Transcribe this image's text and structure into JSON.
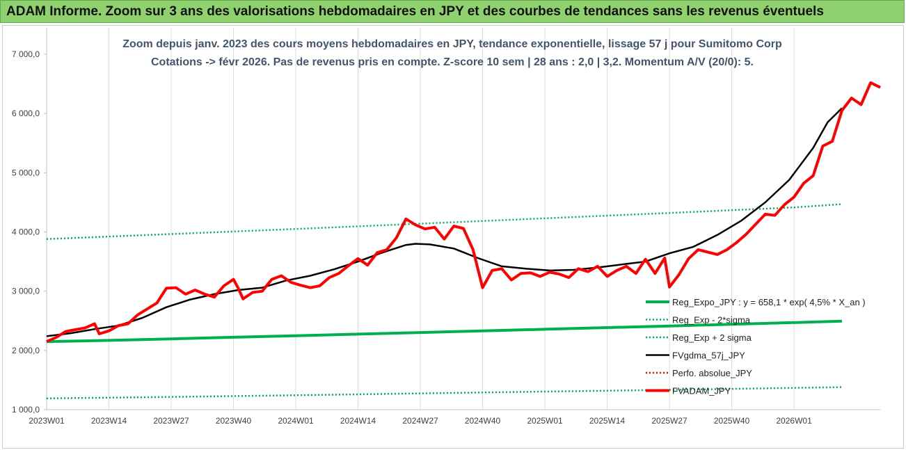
{
  "header": {
    "title": "ADAM Informe. Zoom sur 3 ans des valorisations hebdomadaires en JPY et des courbes de tendances sans les revenus éventuels"
  },
  "chart_data": {
    "type": "line",
    "title_lines": [
      "Zoom depuis janv. 2023 des cours moyens hebdomadaires en JPY, tendance exponentielle, lissage 57 j pour Sumitomo Corp",
      "Cotations -> févr 2026.  Pas de revenus pris en compte. Z-score 10 sem | 28 ans : 2,0 | 3,2. Momentum A/V (20/0): 5."
    ],
    "xlabel": "",
    "ylabel": "",
    "ylim": [
      1000,
      7000
    ],
    "yticks": [
      "1 000,0",
      "2 000,0",
      "3 000,0",
      "4 000,0",
      "5 000,0",
      "6 000,0",
      "7 000,0"
    ],
    "xticks": [
      "2023W01",
      "2023W14",
      "2023W27",
      "2023W40",
      "2024W01",
      "2024W14",
      "2024W27",
      "2024W40",
      "2025W01",
      "2025W14",
      "2025W27",
      "2025W40",
      "2026W01"
    ],
    "grid": "vertical",
    "legend_position": "bottom-right",
    "x_range_weeks": [
      0,
      166
    ],
    "series": [
      {
        "name": "Reg_Expo_JPY : y = 658,1 * exp( 4,5% *  X_an )",
        "color": "#00b050",
        "style": "thick",
        "points": [
          [
            0,
            2150
          ],
          [
            13,
            2170
          ],
          [
            26,
            2195
          ],
          [
            39,
            2222
          ],
          [
            52,
            2248
          ],
          [
            65,
            2275
          ],
          [
            78,
            2302
          ],
          [
            91,
            2330
          ],
          [
            104,
            2357
          ],
          [
            117,
            2385
          ],
          [
            130,
            2413
          ],
          [
            143,
            2442
          ],
          [
            156,
            2470
          ],
          [
            166,
            2493
          ]
        ]
      },
      {
        "name": "Reg_Exp - 2*sigma",
        "color": "#00b050",
        "style": "dotted",
        "points": [
          [
            0,
            1190
          ],
          [
            26,
            1215
          ],
          [
            52,
            1243
          ],
          [
            78,
            1275
          ],
          [
            104,
            1305
          ],
          [
            130,
            1335
          ],
          [
            156,
            1368
          ],
          [
            166,
            1380
          ]
        ]
      },
      {
        "name": "Reg_Exp + 2 sigma",
        "color": "#00b050",
        "style": "dotted",
        "points": [
          [
            0,
            3880
          ],
          [
            26,
            3965
          ],
          [
            52,
            4050
          ],
          [
            78,
            4140
          ],
          [
            104,
            4230
          ],
          [
            130,
            4320
          ],
          [
            156,
            4415
          ],
          [
            166,
            4470
          ]
        ]
      },
      {
        "name": "FVgdma_57j_JPY",
        "color": "#000000",
        "style": "solid",
        "points": [
          [
            0,
            2240
          ],
          [
            5,
            2290
          ],
          [
            10,
            2360
          ],
          [
            15,
            2420
          ],
          [
            20,
            2550
          ],
          [
            25,
            2730
          ],
          [
            30,
            2860
          ],
          [
            35,
            2950
          ],
          [
            40,
            3020
          ],
          [
            45,
            3060
          ],
          [
            50,
            3180
          ],
          [
            55,
            3260
          ],
          [
            60,
            3370
          ],
          [
            65,
            3500
          ],
          [
            70,
            3650
          ],
          [
            75,
            3780
          ],
          [
            77,
            3800
          ],
          [
            80,
            3790
          ],
          [
            85,
            3720
          ],
          [
            90,
            3560
          ],
          [
            95,
            3420
          ],
          [
            100,
            3380
          ],
          [
            105,
            3350
          ],
          [
            110,
            3360
          ],
          [
            115,
            3400
          ],
          [
            120,
            3450
          ],
          [
            125,
            3500
          ],
          [
            130,
            3640
          ],
          [
            135,
            3750
          ],
          [
            140,
            3950
          ],
          [
            145,
            4190
          ],
          [
            150,
            4500
          ],
          [
            155,
            4880
          ],
          [
            160,
            5420
          ],
          [
            163,
            5850
          ],
          [
            166,
            6090
          ]
        ]
      },
      {
        "name": "Perfo. absolue_JPY",
        "color": "#ff0000",
        "style": "dotted",
        "points": []
      },
      {
        "name": "FVADAM_JPY",
        "color": "#ff0000",
        "style": "thick",
        "points": [
          [
            0,
            2150
          ],
          [
            2,
            2220
          ],
          [
            4,
            2320
          ],
          [
            6,
            2350
          ],
          [
            8,
            2380
          ],
          [
            10,
            2450
          ],
          [
            11,
            2280
          ],
          [
            13,
            2330
          ],
          [
            15,
            2420
          ],
          [
            17,
            2450
          ],
          [
            19,
            2600
          ],
          [
            21,
            2700
          ],
          [
            23,
            2800
          ],
          [
            25,
            3050
          ],
          [
            27,
            3060
          ],
          [
            29,
            2950
          ],
          [
            31,
            3020
          ],
          [
            33,
            2950
          ],
          [
            35,
            2900
          ],
          [
            37,
            3090
          ],
          [
            39,
            3200
          ],
          [
            40,
            3050
          ],
          [
            41,
            2870
          ],
          [
            43,
            2980
          ],
          [
            45,
            3000
          ],
          [
            47,
            3200
          ],
          [
            49,
            3260
          ],
          [
            51,
            3150
          ],
          [
            53,
            3100
          ],
          [
            55,
            3060
          ],
          [
            57,
            3090
          ],
          [
            59,
            3230
          ],
          [
            61,
            3300
          ],
          [
            63,
            3430
          ],
          [
            65,
            3550
          ],
          [
            67,
            3440
          ],
          [
            69,
            3650
          ],
          [
            71,
            3700
          ],
          [
            73,
            3900
          ],
          [
            75,
            4220
          ],
          [
            77,
            4120
          ],
          [
            79,
            4050
          ],
          [
            81,
            4080
          ],
          [
            83,
            3880
          ],
          [
            85,
            4100
          ],
          [
            87,
            4060
          ],
          [
            89,
            3700
          ],
          [
            91,
            3060
          ],
          [
            93,
            3350
          ],
          [
            95,
            3380
          ],
          [
            97,
            3190
          ],
          [
            99,
            3300
          ],
          [
            101,
            3310
          ],
          [
            103,
            3250
          ],
          [
            105,
            3320
          ],
          [
            107,
            3290
          ],
          [
            109,
            3230
          ],
          [
            111,
            3380
          ],
          [
            113,
            3330
          ],
          [
            115,
            3420
          ],
          [
            117,
            3250
          ],
          [
            119,
            3350
          ],
          [
            121,
            3420
          ],
          [
            123,
            3300
          ],
          [
            125,
            3540
          ],
          [
            127,
            3300
          ],
          [
            129,
            3560
          ],
          [
            130,
            3070
          ],
          [
            132,
            3280
          ],
          [
            134,
            3550
          ],
          [
            136,
            3700
          ],
          [
            138,
            3660
          ],
          [
            140,
            3620
          ],
          [
            142,
            3700
          ],
          [
            144,
            3820
          ],
          [
            146,
            3960
          ],
          [
            148,
            4130
          ],
          [
            150,
            4300
          ],
          [
            152,
            4280
          ],
          [
            154,
            4460
          ],
          [
            156,
            4590
          ],
          [
            158,
            4820
          ],
          [
            160,
            4950
          ],
          [
            162,
            5450
          ],
          [
            164,
            5530
          ],
          [
            166,
            6050
          ],
          [
            168,
            6260
          ],
          [
            170,
            6150
          ],
          [
            172,
            6520
          ],
          [
            174,
            6440
          ]
        ]
      }
    ]
  }
}
